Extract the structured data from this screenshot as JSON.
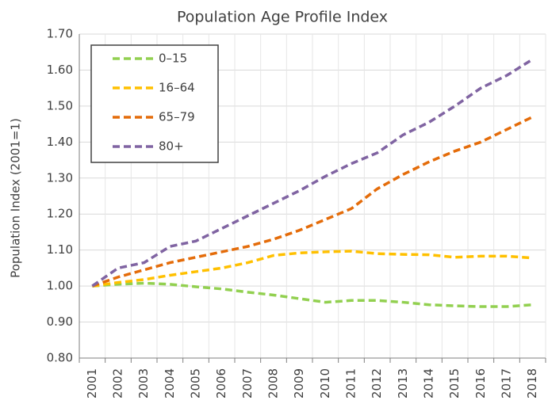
{
  "chart_data": {
    "type": "line",
    "title": "Population Age Profile Index",
    "y_label": "Population Index (2001=1)",
    "categories": [
      "2001",
      "2002",
      "2003",
      "2004",
      "2005",
      "2006",
      "2007",
      "2008",
      "2009",
      "2010",
      "2011",
      "2012",
      "2013",
      "2014",
      "2015",
      "2016",
      "2017",
      "2018"
    ],
    "series": [
      {
        "name": "0–15",
        "color": "#92d050",
        "values": [
          1.0,
          1.005,
          1.008,
          1.005,
          0.998,
          0.992,
          0.983,
          0.975,
          0.965,
          0.955,
          0.96,
          0.96,
          0.955,
          0.948,
          0.945,
          0.943,
          0.943,
          0.948
        ]
      },
      {
        "name": "16–64",
        "color": "#ffc000",
        "values": [
          1.0,
          1.01,
          1.018,
          1.03,
          1.04,
          1.05,
          1.065,
          1.085,
          1.092,
          1.095,
          1.097,
          1.09,
          1.088,
          1.087,
          1.08,
          1.083,
          1.083,
          1.078
        ]
      },
      {
        "name": "65–79",
        "color": "#e46c0a",
        "values": [
          1.0,
          1.025,
          1.045,
          1.065,
          1.08,
          1.095,
          1.11,
          1.13,
          1.155,
          1.185,
          1.215,
          1.27,
          1.31,
          1.345,
          1.375,
          1.4,
          1.435,
          1.47
        ]
      },
      {
        "name": "80+",
        "color": "#8064a2",
        "values": [
          1.0,
          1.05,
          1.065,
          1.11,
          1.125,
          1.16,
          1.195,
          1.23,
          1.265,
          1.305,
          1.34,
          1.37,
          1.42,
          1.455,
          1.5,
          1.55,
          1.585,
          1.63
        ]
      }
    ],
    "ylim": [
      0.8,
      1.7
    ],
    "yticks": [
      {
        "value": 0.8,
        "label": "0.80"
      },
      {
        "value": 0.9,
        "label": "0.90"
      },
      {
        "value": 1.0,
        "label": "1.00"
      },
      {
        "value": 1.1,
        "label": "1.10"
      },
      {
        "value": 1.2,
        "label": "1.20"
      },
      {
        "value": 1.3,
        "label": "1.30"
      },
      {
        "value": 1.4,
        "label": "1.40"
      },
      {
        "value": 1.5,
        "label": "1.50"
      },
      {
        "value": 1.6,
        "label": "1.60"
      },
      {
        "value": 1.7,
        "label": "1.70"
      }
    ],
    "grid": true,
    "legend": "top-left",
    "dashed": true
  }
}
